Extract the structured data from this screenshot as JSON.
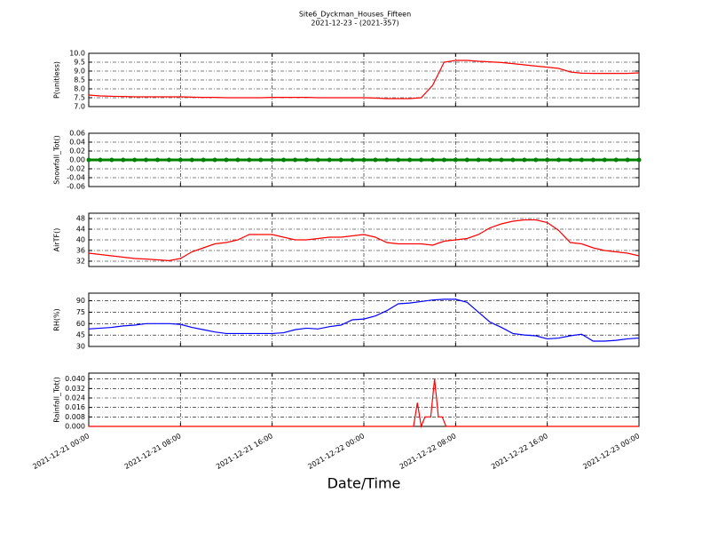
{
  "title": "Site6_Dyckman_Houses_Fifteen",
  "subtitle": "2021-12-23 - (2021-357)",
  "x_axis": {
    "label": "Date/Time",
    "xlim": [
      "2021-12-21 00:00",
      "2021-12-23 00:00"
    ],
    "xticks": [
      "2021-12-21 00:00",
      "2021-12-21 08:00",
      "2021-12-21 16:00",
      "2021-12-22 00:00",
      "2021-12-22 08:00",
      "2021-12-22 16:00",
      "2021-12-23 00:00"
    ]
  },
  "chart_data": [
    {
      "type": "line",
      "ylabel": "P(unitless)",
      "grid": true,
      "x": [
        "2021-12-21 00:00",
        "2021-12-21 01:00",
        "2021-12-21 02:00",
        "2021-12-21 03:00",
        "2021-12-21 04:00",
        "2021-12-21 05:00",
        "2021-12-21 06:00",
        "2021-12-21 07:00",
        "2021-12-21 08:00",
        "2021-12-21 09:00",
        "2021-12-21 10:00",
        "2021-12-21 11:00",
        "2021-12-21 12:00",
        "2021-12-21 13:00",
        "2021-12-21 14:00",
        "2021-12-21 15:00",
        "2021-12-21 16:00",
        "2021-12-21 17:00",
        "2021-12-21 18:00",
        "2021-12-21 19:00",
        "2021-12-21 20:00",
        "2021-12-21 21:00",
        "2021-12-21 22:00",
        "2021-12-21 23:00",
        "2021-12-22 00:00",
        "2021-12-22 01:00",
        "2021-12-22 02:00",
        "2021-12-22 03:00",
        "2021-12-22 04:00",
        "2021-12-22 05:00",
        "2021-12-22 06:00",
        "2021-12-22 07:00",
        "2021-12-22 08:00",
        "2021-12-22 09:00",
        "2021-12-22 10:00",
        "2021-12-22 11:00",
        "2021-12-22 12:00",
        "2021-12-22 13:00",
        "2021-12-22 14:00",
        "2021-12-22 15:00",
        "2021-12-22 16:00",
        "2021-12-22 17:00",
        "2021-12-22 18:00",
        "2021-12-22 19:00",
        "2021-12-22 20:00",
        "2021-12-22 21:00",
        "2021-12-22 22:00",
        "2021-12-22 23:00",
        "2021-12-23 00:00"
      ],
      "series": [
        {
          "color": "#ff0000",
          "values": [
            7.65,
            7.6,
            7.58,
            7.57,
            7.55,
            7.55,
            7.55,
            7.55,
            7.55,
            7.53,
            7.52,
            7.52,
            7.5,
            7.5,
            7.5,
            7.5,
            7.52,
            7.52,
            7.52,
            7.52,
            7.5,
            7.5,
            7.5,
            7.5,
            7.5,
            7.48,
            7.45,
            7.45,
            7.45,
            7.5,
            8.2,
            9.5,
            9.6,
            9.6,
            9.55,
            9.52,
            9.48,
            9.42,
            9.35,
            9.28,
            9.22,
            9.15,
            8.95,
            8.88,
            8.87,
            8.87,
            8.87,
            8.87,
            8.9
          ]
        }
      ],
      "ylim": [
        7,
        10
      ],
      "yticks": [
        {
          "value": 7,
          "label": "7.0"
        },
        7.5,
        {
          "value": 8,
          "label": "8.0"
        },
        8.5,
        {
          "value": 9,
          "label": "9.0"
        },
        9.5,
        {
          "value": 10,
          "label": "10.0"
        }
      ]
    },
    {
      "type": "line",
      "ylabel": "Snowfall_Tot()",
      "grid": true,
      "markers": true,
      "x": [
        "2021-12-21 00:00",
        "2021-12-21 01:00",
        "2021-12-21 02:00",
        "2021-12-21 03:00",
        "2021-12-21 04:00",
        "2021-12-21 05:00",
        "2021-12-21 06:00",
        "2021-12-21 07:00",
        "2021-12-21 08:00",
        "2021-12-21 09:00",
        "2021-12-21 10:00",
        "2021-12-21 11:00",
        "2021-12-21 12:00",
        "2021-12-21 13:00",
        "2021-12-21 14:00",
        "2021-12-21 15:00",
        "2021-12-21 16:00",
        "2021-12-21 17:00",
        "2021-12-21 18:00",
        "2021-12-21 19:00",
        "2021-12-21 20:00",
        "2021-12-21 21:00",
        "2021-12-21 22:00",
        "2021-12-21 23:00",
        "2021-12-22 00:00",
        "2021-12-22 01:00",
        "2021-12-22 02:00",
        "2021-12-22 03:00",
        "2021-12-22 04:00",
        "2021-12-22 05:00",
        "2021-12-22 06:00",
        "2021-12-22 07:00",
        "2021-12-22 08:00",
        "2021-12-22 09:00",
        "2021-12-22 10:00",
        "2021-12-22 11:00",
        "2021-12-22 12:00",
        "2021-12-22 13:00",
        "2021-12-22 14:00",
        "2021-12-22 15:00",
        "2021-12-22 16:00",
        "2021-12-22 17:00",
        "2021-12-22 18:00",
        "2021-12-22 19:00",
        "2021-12-22 20:00",
        "2021-12-22 21:00",
        "2021-12-22 22:00",
        "2021-12-22 23:00",
        "2021-12-23 00:00"
      ],
      "series": [
        {
          "color": "#008000",
          "values": [
            0,
            0,
            0,
            0,
            0,
            0,
            0,
            0,
            0,
            0,
            0,
            0,
            0,
            0,
            0,
            0,
            0,
            0,
            0,
            0,
            0,
            0,
            0,
            0,
            0,
            0,
            0,
            0,
            0,
            0,
            0,
            0,
            0,
            0,
            0,
            0,
            0,
            0,
            0,
            0,
            0,
            0,
            0,
            0,
            0,
            0,
            0,
            0,
            0
          ]
        }
      ],
      "ylim": [
        -0.06,
        0.06
      ],
      "yticks": [
        -0.06,
        -0.04,
        -0.02,
        {
          "value": 0,
          "label": "0.00"
        },
        0.02,
        0.04,
        0.06
      ]
    },
    {
      "type": "line",
      "ylabel": "AirTF()",
      "grid": true,
      "x": [
        "2021-12-21 00:00",
        "2021-12-21 01:00",
        "2021-12-21 02:00",
        "2021-12-21 03:00",
        "2021-12-21 04:00",
        "2021-12-21 05:00",
        "2021-12-21 06:00",
        "2021-12-21 07:00",
        "2021-12-21 08:00",
        "2021-12-21 09:00",
        "2021-12-21 10:00",
        "2021-12-21 11:00",
        "2021-12-21 12:00",
        "2021-12-21 13:00",
        "2021-12-21 14:00",
        "2021-12-21 15:00",
        "2021-12-21 16:00",
        "2021-12-21 17:00",
        "2021-12-21 18:00",
        "2021-12-21 19:00",
        "2021-12-21 20:00",
        "2021-12-21 21:00",
        "2021-12-21 22:00",
        "2021-12-21 23:00",
        "2021-12-22 00:00",
        "2021-12-22 01:00",
        "2021-12-22 02:00",
        "2021-12-22 03:00",
        "2021-12-22 04:00",
        "2021-12-22 05:00",
        "2021-12-22 06:00",
        "2021-12-22 07:00",
        "2021-12-22 08:00",
        "2021-12-22 09:00",
        "2021-12-22 10:00",
        "2021-12-22 11:00",
        "2021-12-22 12:00",
        "2021-12-22 13:00",
        "2021-12-22 14:00",
        "2021-12-22 15:00",
        "2021-12-22 16:00",
        "2021-12-22 17:00",
        "2021-12-22 18:00",
        "2021-12-22 19:00",
        "2021-12-22 20:00",
        "2021-12-22 21:00",
        "2021-12-22 22:00",
        "2021-12-22 23:00",
        "2021-12-23 00:00"
      ],
      "series": [
        {
          "color": "#ff0000",
          "values": [
            35,
            34.5,
            34,
            33.5,
            33,
            32.8,
            32.5,
            32.2,
            33,
            35.5,
            37,
            38.5,
            39,
            40,
            42,
            42,
            42,
            41,
            40,
            40,
            40.5,
            41,
            41,
            41.5,
            42,
            41,
            39,
            38.5,
            38.5,
            38.5,
            38,
            39.5,
            40,
            40.5,
            42,
            44.5,
            46,
            47,
            47.5,
            47.5,
            46.5,
            43.5,
            39,
            38.5,
            37,
            36,
            35.5,
            35,
            34
          ]
        }
      ],
      "ylim": [
        30,
        50
      ],
      "yticks": [
        32,
        36,
        40,
        44,
        48
      ]
    },
    {
      "type": "line",
      "ylabel": "RH(%)",
      "grid": true,
      "x": [
        "2021-12-21 00:00",
        "2021-12-21 01:00",
        "2021-12-21 02:00",
        "2021-12-21 03:00",
        "2021-12-21 04:00",
        "2021-12-21 05:00",
        "2021-12-21 06:00",
        "2021-12-21 07:00",
        "2021-12-21 08:00",
        "2021-12-21 09:00",
        "2021-12-21 10:00",
        "2021-12-21 11:00",
        "2021-12-21 12:00",
        "2021-12-21 13:00",
        "2021-12-21 14:00",
        "2021-12-21 15:00",
        "2021-12-21 16:00",
        "2021-12-21 17:00",
        "2021-12-21 18:00",
        "2021-12-21 19:00",
        "2021-12-21 20:00",
        "2021-12-21 21:00",
        "2021-12-21 22:00",
        "2021-12-21 23:00",
        "2021-12-22 00:00",
        "2021-12-22 01:00",
        "2021-12-22 02:00",
        "2021-12-22 03:00",
        "2021-12-22 04:00",
        "2021-12-22 05:00",
        "2021-12-22 06:00",
        "2021-12-22 07:00",
        "2021-12-22 08:00",
        "2021-12-22 09:00",
        "2021-12-22 10:00",
        "2021-12-22 11:00",
        "2021-12-22 12:00",
        "2021-12-22 13:00",
        "2021-12-22 14:00",
        "2021-12-22 15:00",
        "2021-12-22 16:00",
        "2021-12-22 17:00",
        "2021-12-22 18:00",
        "2021-12-22 19:00",
        "2021-12-22 20:00",
        "2021-12-22 21:00",
        "2021-12-22 22:00",
        "2021-12-22 23:00",
        "2021-12-23 00:00"
      ],
      "series": [
        {
          "color": "#0000ff",
          "values": [
            53,
            54,
            55,
            57,
            58,
            60,
            60,
            60,
            59,
            55,
            52,
            49,
            47,
            47,
            47,
            47,
            47,
            48,
            52,
            54,
            53,
            56,
            58,
            65,
            66,
            70,
            77,
            86,
            87,
            89,
            91,
            92,
            92,
            88,
            75,
            62,
            55,
            47,
            45,
            44,
            40,
            41,
            44,
            46,
            37,
            37,
            38,
            40,
            41
          ]
        }
      ],
      "ylim": [
        30,
        100
      ],
      "yticks": [
        30,
        45,
        60,
        75,
        90
      ]
    },
    {
      "type": "line",
      "ylabel": "Rainfall_Tot()",
      "grid": true,
      "x": [
        "2021-12-21 00:00",
        "2021-12-22 04:20",
        "2021-12-22 04:40",
        "2021-12-22 05:00",
        "2021-12-22 05:20",
        "2021-12-22 05:50",
        "2021-12-22 06:10",
        "2021-12-22 06:30",
        "2021-12-22 06:50",
        "2021-12-22 07:10",
        "2021-12-23 00:00"
      ],
      "series": [
        {
          "color": "#ff0000",
          "values": [
            0,
            0,
            0.02,
            0,
            0.008,
            0.008,
            0.04,
            0.008,
            0.008,
            0,
            0
          ]
        }
      ],
      "ylim": [
        0,
        0.045
      ],
      "yticks": [
        {
          "value": 0,
          "label": "0.000"
        },
        0.008,
        0.016,
        0.024,
        0.032,
        {
          "value": 0.04,
          "label": "0.040"
        }
      ]
    }
  ]
}
